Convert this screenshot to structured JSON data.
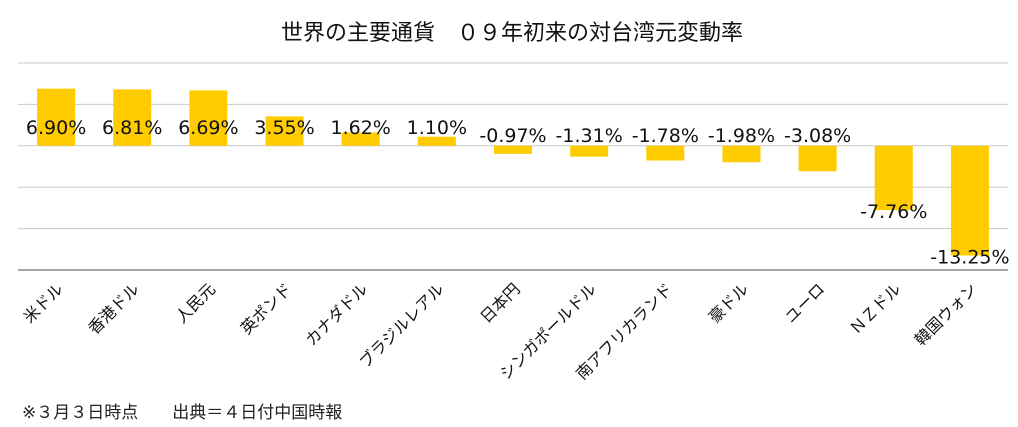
{
  "chart_data": {
    "type": "bar",
    "title": "世界の主要通貨　０９年初来の対台湾元変動率",
    "categories": [
      "米ドル",
      "香港ドル",
      "人民元",
      "英ポンド",
      "カナダドル",
      "ブラジルレアル",
      "日本円",
      "シンガポールドル",
      "南アフリカランド",
      "豪ドル",
      "ユーロ",
      "ＮＺドル",
      "韓国ウォン"
    ],
    "values": [
      6.9,
      6.81,
      6.69,
      3.55,
      1.62,
      1.1,
      -0.97,
      -1.31,
      -1.78,
      -1.98,
      -3.08,
      -7.76,
      -13.25
    ],
    "data_labels": [
      "6.90%",
      "6.81%",
      "6.69%",
      "3.55%",
      "1.62%",
      "1.10%",
      "-0.97%",
      "-1.31%",
      "-1.78%",
      "-1.98%",
      "-3.08%",
      "-7.76%",
      "-13.25%"
    ],
    "ylim": [
      -15,
      10
    ],
    "grid": true,
    "bar_color": "#ffcc00",
    "grid_color": "#c8c8c8",
    "axis_color": "#888888",
    "xlabel": "",
    "ylabel": ""
  },
  "footnote": "※３月３日時点　　出典＝４日付中国時報"
}
